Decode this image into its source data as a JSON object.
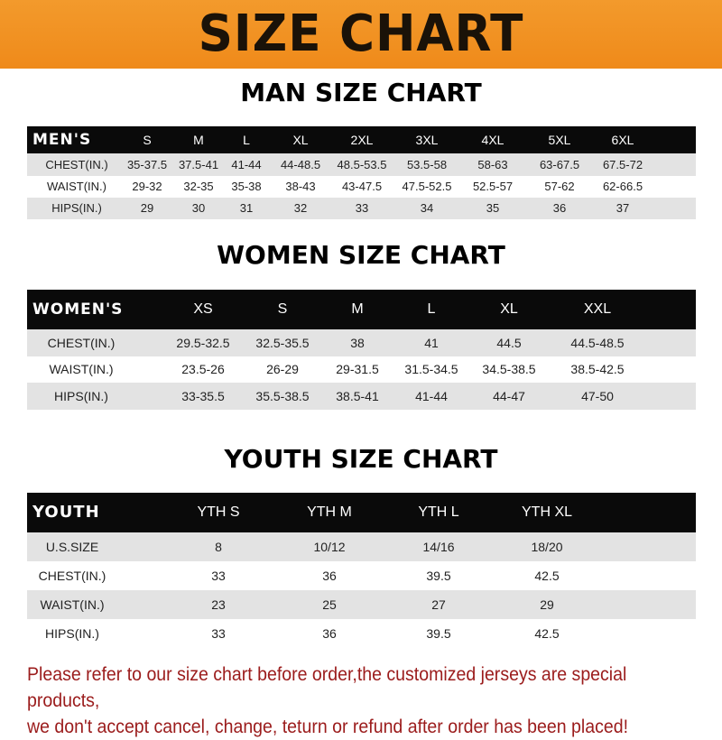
{
  "banner_title": "SIZE CHART",
  "colors": {
    "banner": "#ef8a1a",
    "header_row": "#0a0a0a",
    "stripe": "#e3e3e3",
    "notice": "#9b1c1c"
  },
  "men": {
    "title": "MAN SIZE CHART",
    "header": [
      "MEN'S",
      "S",
      "M",
      "L",
      "XL",
      "2XL",
      "3XL",
      "4XL",
      "5XL",
      "6XL"
    ],
    "rows": [
      [
        "CHEST(IN.)",
        "35-37.5",
        "37.5-41",
        "41-44",
        "44-48.5",
        "48.5-53.5",
        "53.5-58",
        "58-63",
        "63-67.5",
        "67.5-72"
      ],
      [
        "WAIST(IN.)",
        "29-32",
        "32-35",
        "35-38",
        "38-43",
        "43-47.5",
        "47.5-52.5",
        "52.5-57",
        "57-62",
        "62-66.5"
      ],
      [
        "HIPS(IN.)",
        "29",
        "30",
        "31",
        "32",
        "33",
        "34",
        "35",
        "36",
        "37"
      ]
    ]
  },
  "women": {
    "title": "WOMEN SIZE CHART",
    "header": [
      "WOMEN'S",
      "XS",
      "S",
      "M",
      "L",
      "XL",
      "XXL"
    ],
    "rows": [
      [
        "CHEST(IN.)",
        "29.5-32.5",
        "32.5-35.5",
        "38",
        "41",
        "44.5",
        "44.5-48.5"
      ],
      [
        "WAIST(IN.)",
        "23.5-26",
        "26-29",
        "29-31.5",
        "31.5-34.5",
        "34.5-38.5",
        "38.5-42.5"
      ],
      [
        "HIPS(IN.)",
        "33-35.5",
        "35.5-38.5",
        "38.5-41",
        "41-44",
        "44-47",
        "47-50"
      ]
    ]
  },
  "youth": {
    "title": "YOUTH SIZE CHART",
    "header": [
      "YOUTH",
      "YTH S",
      "YTH M",
      "YTH L",
      "YTH XL"
    ],
    "rows": [
      [
        "U.S.SIZE",
        "8",
        "10/12",
        "14/16",
        "18/20"
      ],
      [
        "CHEST(IN.)",
        "33",
        "36",
        "39.5",
        "42.5"
      ],
      [
        "WAIST(IN.)",
        "23",
        "25",
        "27",
        "29"
      ],
      [
        "HIPS(IN.)",
        "33",
        "36",
        "39.5",
        "42.5"
      ]
    ]
  },
  "notice": [
    "Please refer to our size chart before order,the customized jerseys are special products,",
    "we don't accept cancel, change, teturn or refund after order has been placed!"
  ]
}
